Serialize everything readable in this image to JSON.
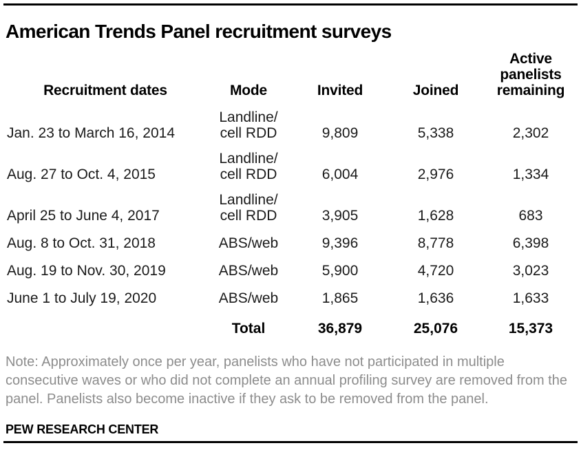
{
  "header": {
    "title": "American Trends Panel recruitment surveys"
  },
  "table": {
    "columns": [
      "Recruitment dates",
      "Mode",
      "Invited",
      "Joined",
      "Active panelists remaining"
    ],
    "rows": [
      {
        "dates": "Jan. 23 to March 16, 2014",
        "mode": [
          "Landline/",
          "cell RDD"
        ],
        "invited": "9,809",
        "joined": "5,338",
        "remaining": "2,302"
      },
      {
        "dates": "Aug. 27 to Oct. 4, 2015",
        "mode": [
          "Landline/",
          "cell RDD"
        ],
        "invited": "6,004",
        "joined": "2,976",
        "remaining": "1,334"
      },
      {
        "dates": "April 25 to June 4, 2017",
        "mode": [
          "Landline/",
          "cell RDD"
        ],
        "invited": "3,905",
        "joined": "1,628",
        "remaining": "683"
      },
      {
        "dates": "Aug. 8 to Oct. 31, 2018",
        "mode": [
          "ABS/web"
        ],
        "invited": "9,396",
        "joined": "8,778",
        "remaining": "6,398"
      },
      {
        "dates": "Aug. 19 to Nov. 30, 2019",
        "mode": [
          "ABS/web"
        ],
        "invited": "5,900",
        "joined": "4,720",
        "remaining": "3,023"
      },
      {
        "dates": "June 1 to July 19, 2020",
        "mode": [
          "ABS/web"
        ],
        "invited": "1,865",
        "joined": "1,636",
        "remaining": "1,633"
      }
    ],
    "total": {
      "label": "Total",
      "invited": "36,879",
      "joined": "25,076",
      "remaining": "15,373"
    }
  },
  "footer": {
    "note": "Note: Approximately once per year, panelists who have not participated in multiple consecutive waves or who did not complete an annual profiling survey are removed from the panel. Panelists also become inactive if they ask to be removed from the panel.",
    "source": "PEW RESEARCH CENTER"
  },
  "colors": {
    "text": "#000000",
    "body_text": "#1a1a1a",
    "note_gray": "#8c8c8c",
    "rule": "#000000",
    "background": "#ffffff"
  },
  "chart_data": {
    "type": "table",
    "title": "American Trends Panel recruitment surveys",
    "columns": [
      "Recruitment dates",
      "Mode",
      "Invited",
      "Joined",
      "Active panelists remaining"
    ],
    "rows": [
      [
        "Jan. 23 to March 16, 2014",
        "Landline/cell RDD",
        9809,
        5338,
        2302
      ],
      [
        "Aug. 27 to Oct. 4, 2015",
        "Landline/cell RDD",
        6004,
        2976,
        1334
      ],
      [
        "April 25 to June 4, 2017",
        "Landline/cell RDD",
        3905,
        1628,
        683
      ],
      [
        "Aug. 8 to Oct. 31, 2018",
        "ABS/web",
        9396,
        8778,
        6398
      ],
      [
        "Aug. 19 to Nov. 30, 2019",
        "ABS/web",
        5900,
        4720,
        3023
      ],
      [
        "June 1 to July 19, 2020",
        "ABS/web",
        1865,
        1636,
        1633
      ]
    ],
    "total_row": [
      "",
      "Total",
      36879,
      25076,
      15373
    ],
    "note": "Note: Approximately once per year, panelists who have not participated in multiple consecutive waves or who did not complete an annual profiling survey are removed from the panel. Panelists also become inactive if they ask to be removed from the panel.",
    "source": "PEW RESEARCH CENTER"
  }
}
